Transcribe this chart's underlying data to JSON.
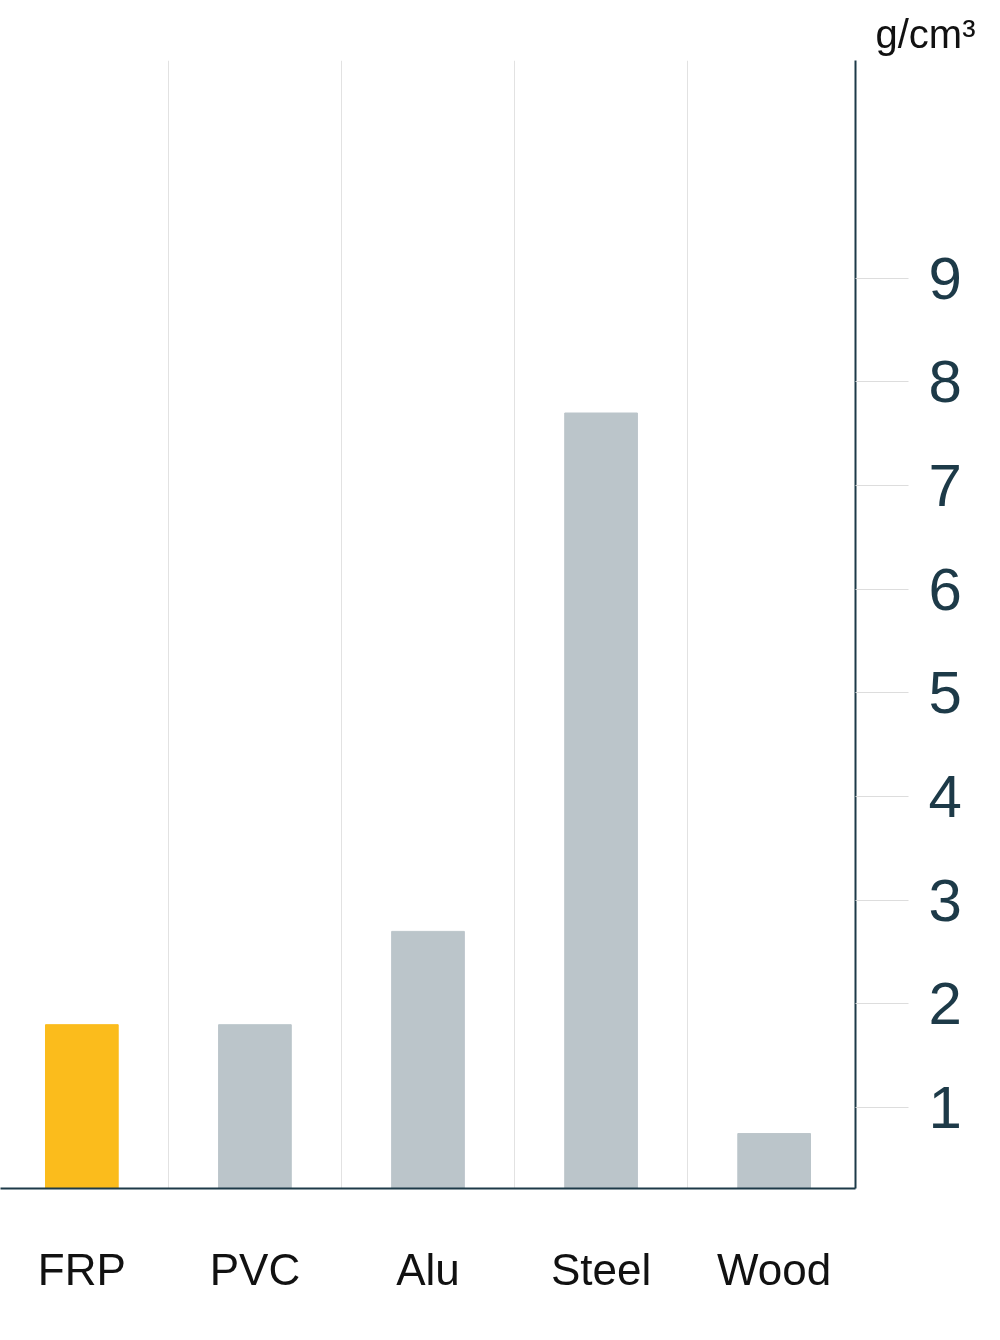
{
  "chart_data": {
    "type": "bar",
    "ylabel": "g/cm³",
    "categories": [
      "FRP",
      "PVC",
      "Alu",
      "Steel",
      "Wood"
    ],
    "values": [
      1.8,
      1.8,
      2.7,
      7.7,
      0.75
    ],
    "colors": [
      "#fbbc1c",
      "#bbc5ca",
      "#bbc5ca",
      "#bbc5ca",
      "#bbc5ca"
    ],
    "ylim": [
      0.22,
      11.1
    ],
    "yticks": [
      1,
      2,
      3,
      4,
      5,
      6,
      7,
      8,
      9
    ],
    "grid": "x"
  }
}
